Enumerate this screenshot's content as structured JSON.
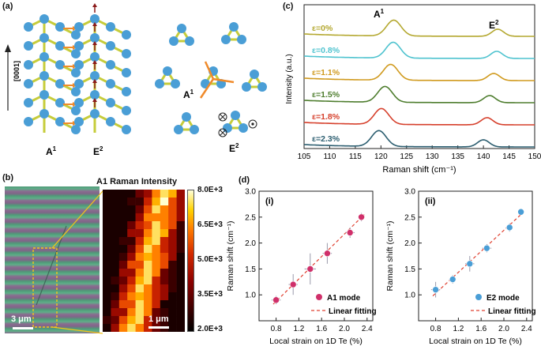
{
  "panels": {
    "a": {
      "label": "(a)",
      "axis_label": "[0001]",
      "mode1": "A",
      "mode1_sup": "1",
      "mode2": "E",
      "mode2_sup": "2",
      "colors": {
        "atom": "#4a9ed6",
        "bond": "#c6cc3a",
        "arrow_orange": "#f08a2a",
        "arrow_red": "#8b1a1a"
      }
    },
    "b": {
      "label": "(b)",
      "map_title": "A1 Raman Intensity",
      "scale_left": "3 μm",
      "scale_right": "1 μm",
      "colorbar_ticks": [
        "8.0E+3",
        "6.5E+3",
        "5.0E+3",
        "3.5E+3",
        "2.0E+3"
      ]
    },
    "c": {
      "label": "(c)"
    },
    "d": {
      "label": "(d)"
    }
  },
  "chart_data": [
    {
      "type": "line",
      "panel": "c",
      "xlabel": "Raman shift (cm⁻¹)",
      "ylabel": "Intensity (a.u.)",
      "xlim": [
        105,
        150
      ],
      "xticks": [
        105,
        110,
        115,
        120,
        125,
        130,
        135,
        140,
        145,
        150
      ],
      "peak_labels": [
        {
          "text": "A",
          "sup": "1"
        },
        {
          "text": "E",
          "sup": "2"
        }
      ],
      "series": [
        {
          "name": "ε=0%",
          "color": "#b4a830",
          "a1_peak": 122.5,
          "e2_peak": 142.8
        },
        {
          "name": "ε=0.8%",
          "color": "#4fc3cf",
          "a1_peak": 122.4,
          "e2_peak": 142.6
        },
        {
          "name": "ε=1.1%",
          "color": "#d09a1e",
          "a1_peak": 121.9,
          "e2_peak": 142.0
        },
        {
          "name": "ε=1.5%",
          "color": "#4e7d2e",
          "a1_peak": 120.8,
          "e2_peak": 141.2
        },
        {
          "name": "ε=1.8%",
          "color": "#d6402c",
          "a1_peak": 120.1,
          "e2_peak": 140.7
        },
        {
          "name": "ε=2.3%",
          "color": "#2c5e70",
          "a1_peak": 119.6,
          "e2_peak": 140.0
        }
      ]
    },
    {
      "type": "scatter",
      "panel": "d(i)",
      "subtitle": "(i)",
      "xlabel": "Local strain on 1D Te (%)",
      "ylabel": "Raman shift (cm⁻¹)",
      "xlim": [
        0.5,
        2.5
      ],
      "ylim": [
        0.5,
        3.0
      ],
      "xticks": [
        "0.8",
        "1.2",
        "1.6",
        "2.0",
        "2.4"
      ],
      "yticks": [
        "1.0",
        "1.5",
        "2.0",
        "2.5",
        "3.0"
      ],
      "x": [
        0.8,
        1.1,
        1.4,
        1.7,
        2.1,
        2.3
      ],
      "y": [
        0.9,
        1.2,
        1.5,
        1.8,
        2.2,
        2.5
      ],
      "y_err": [
        0.08,
        0.2,
        0.3,
        0.2,
        0.1,
        0.08
      ],
      "x_err": [
        0.08,
        0.08,
        0.1,
        0.08,
        0.08,
        0.06
      ],
      "fit": {
        "x": [
          0.75,
          2.35
        ],
        "y": [
          0.82,
          2.55
        ]
      },
      "legend": [
        "A1 mode",
        "Linear fitting"
      ],
      "marker_color": "#d0306a"
    },
    {
      "type": "scatter",
      "panel": "d(ii)",
      "subtitle": "(ii)",
      "xlabel": "Local strain on 1D Te (%)",
      "ylabel": "Raman shift (cm⁻¹)",
      "xlim": [
        0.5,
        2.5
      ],
      "ylim": [
        0.5,
        3.0
      ],
      "xticks": [
        "0.8",
        "1.2",
        "1.6",
        "2.0",
        "2.4"
      ],
      "yticks": [
        "1.0",
        "1.5",
        "2.0",
        "2.5",
        "3.0"
      ],
      "x": [
        0.8,
        1.1,
        1.4,
        1.7,
        2.1,
        2.3
      ],
      "y": [
        1.1,
        1.3,
        1.6,
        1.9,
        2.3,
        2.6
      ],
      "y_err": [
        0.15,
        0.08,
        0.15,
        0.08,
        0.08,
        0.05
      ],
      "x_err": [
        0.08,
        0.06,
        0.08,
        0.08,
        0.06,
        0.05
      ],
      "fit": {
        "x": [
          0.75,
          2.35
        ],
        "y": [
          0.98,
          2.6
        ]
      },
      "legend": [
        "E2 mode",
        "Linear fitting"
      ],
      "marker_color": "#4a9ed6"
    }
  ]
}
